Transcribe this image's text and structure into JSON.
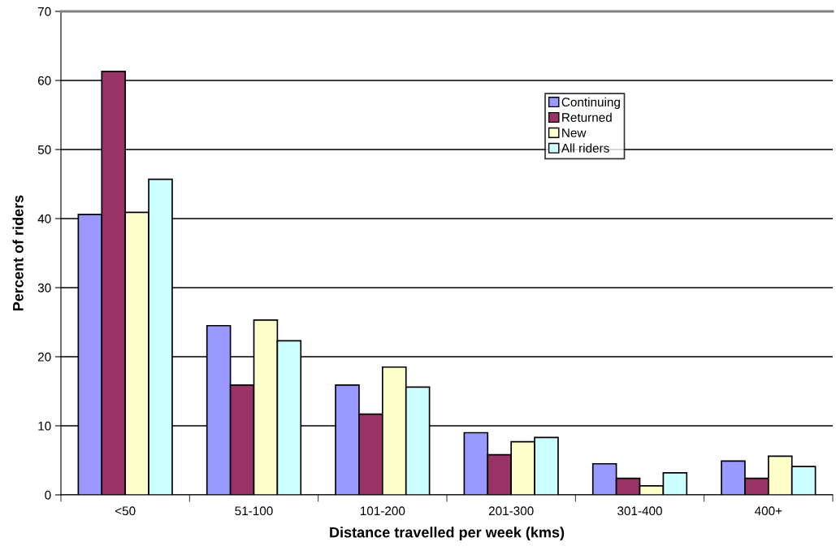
{
  "chart_data": {
    "type": "bar",
    "xlabel": "Distance travelled per week (kms)",
    "ylabel": "Percent of riders",
    "categories": [
      "<50",
      "51-100",
      "101-200",
      "201-300",
      "301-400",
      "400+"
    ],
    "series": [
      {
        "name": "Continuing",
        "color": "#9999ff",
        "values": [
          40.6,
          24.5,
          15.9,
          9.0,
          4.5,
          4.9
        ]
      },
      {
        "name": "Returned",
        "color": "#993366",
        "values": [
          61.3,
          15.9,
          11.7,
          5.8,
          2.4,
          2.4
        ]
      },
      {
        "name": "New",
        "color": "#ffffcc",
        "values": [
          40.9,
          25.3,
          18.5,
          7.7,
          1.3,
          5.6
        ]
      },
      {
        "name": "All riders",
        "color": "#ccffff",
        "values": [
          45.7,
          22.3,
          15.6,
          8.3,
          3.2,
          4.1
        ]
      }
    ],
    "ylim": [
      0,
      70
    ],
    "yticks": [
      0,
      10,
      20,
      30,
      40,
      50,
      60,
      70
    ],
    "grid": "y",
    "legend": "top right"
  }
}
